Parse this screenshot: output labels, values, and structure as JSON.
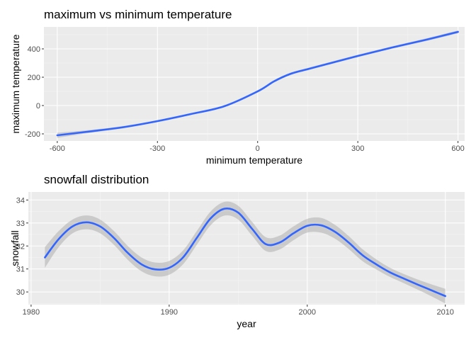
{
  "chart_data": [
    {
      "type": "line",
      "title": "maximum vs minimum temperature",
      "xlabel": "minimum temperature",
      "ylabel": "maximum temperature",
      "xlim": [
        -640,
        620
      ],
      "ylim": [
        -250,
        555
      ],
      "x_ticks": [
        -600,
        -300,
        0,
        300,
        600
      ],
      "x_tick_labels": [
        "-600",
        "-300",
        "0",
        "300",
        "600"
      ],
      "y_ticks": [
        -200,
        0,
        200,
        400
      ],
      "y_tick_labels": [
        "-200",
        "0",
        "200",
        "400"
      ],
      "grid": true,
      "smooth_band": true,
      "series": [
        {
          "x": [
            -600,
            -500,
            -400,
            -300,
            -200,
            -100,
            0,
            50,
            100,
            150,
            200,
            300,
            400,
            500,
            600
          ],
          "y": [
            -210,
            -182,
            -152,
            -110,
            -60,
            -5,
            100,
            172,
            225,
            257,
            288,
            350,
            408,
            462,
            520
          ],
          "band": [
            18,
            10,
            8,
            7,
            7,
            7,
            8,
            8,
            8,
            8,
            8,
            8,
            8,
            9,
            10
          ]
        }
      ]
    },
    {
      "type": "line",
      "title": "snowfall distribution",
      "xlabel": "year",
      "ylabel": "snowfall",
      "xlim": [
        1979.8,
        2011.4
      ],
      "ylim": [
        29.45,
        34.35
      ],
      "x_ticks": [
        1980,
        1990,
        2000,
        2010
      ],
      "x_tick_labels": [
        "1980",
        "1990",
        "2000",
        "2010"
      ],
      "y_ticks": [
        30,
        31,
        32,
        33,
        34
      ],
      "y_tick_labels": [
        "30",
        "31",
        "32",
        "33",
        "34"
      ],
      "grid": true,
      "smooth_band": true,
      "series": [
        {
          "x": [
            1981,
            1982,
            1983,
            1984,
            1985,
            1986,
            1987,
            1988,
            1989,
            1990,
            1991,
            1992,
            1993,
            1994,
            1995,
            1996,
            1997,
            1998,
            1999,
            2000,
            2001,
            2002,
            2003,
            2004,
            2005,
            2006,
            2007,
            2008,
            2009,
            2010
          ],
          "y": [
            31.5,
            32.3,
            32.85,
            33.03,
            32.85,
            32.35,
            31.7,
            31.2,
            30.98,
            31.05,
            31.5,
            32.35,
            33.2,
            33.62,
            33.45,
            32.75,
            32.08,
            32.15,
            32.55,
            32.88,
            32.9,
            32.62,
            32.15,
            31.6,
            31.2,
            30.85,
            30.58,
            30.32,
            30.07,
            29.82
          ],
          "band": [
            0.45,
            0.35,
            0.3,
            0.3,
            0.3,
            0.3,
            0.3,
            0.3,
            0.3,
            0.3,
            0.3,
            0.3,
            0.3,
            0.3,
            0.3,
            0.3,
            0.3,
            0.3,
            0.3,
            0.3,
            0.32,
            0.3,
            0.28,
            0.26,
            0.22,
            0.2,
            0.2,
            0.22,
            0.26,
            0.32
          ]
        }
      ]
    }
  ]
}
